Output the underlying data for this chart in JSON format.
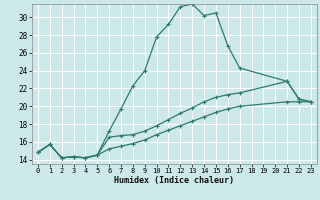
{
  "xlabel": "Humidex (Indice chaleur)",
  "bg_color": "#cce8e8",
  "grid_color": "#ffffff",
  "line_color": "#2e7b6e",
  "xlim": [
    -0.5,
    23.5
  ],
  "ylim": [
    13.5,
    31.5
  ],
  "xticks": [
    0,
    1,
    2,
    3,
    4,
    5,
    6,
    7,
    8,
    9,
    10,
    11,
    12,
    13,
    14,
    15,
    16,
    17,
    18,
    19,
    20,
    21,
    22,
    23
  ],
  "yticks": [
    14,
    16,
    18,
    20,
    22,
    24,
    26,
    28,
    30
  ],
  "series": [
    {
      "x": [
        0,
        1,
        2,
        3,
        4,
        5,
        6,
        7,
        8,
        9,
        10,
        11,
        12,
        13,
        14,
        15,
        16,
        17,
        21,
        22,
        23
      ],
      "y": [
        14.8,
        15.7,
        14.2,
        14.3,
        14.2,
        14.5,
        17.2,
        19.7,
        22.3,
        24.0,
        27.8,
        29.2,
        31.2,
        31.5,
        30.2,
        30.5,
        26.8,
        24.3,
        22.8,
        20.8,
        20.5
      ]
    },
    {
      "x": [
        0,
        1,
        2,
        3,
        4,
        5,
        6,
        7,
        8,
        9,
        10,
        11,
        12,
        13,
        14,
        15,
        16,
        17,
        21,
        22,
        23
      ],
      "y": [
        14.8,
        15.7,
        14.2,
        14.3,
        14.2,
        14.5,
        16.5,
        16.7,
        16.8,
        17.2,
        17.8,
        18.5,
        19.2,
        19.8,
        20.5,
        21.0,
        21.3,
        21.5,
        22.8,
        20.8,
        20.5
      ]
    },
    {
      "x": [
        0,
        1,
        2,
        3,
        4,
        5,
        6,
        7,
        8,
        9,
        10,
        11,
        12,
        13,
        14,
        15,
        16,
        17,
        21,
        22,
        23
      ],
      "y": [
        14.8,
        15.7,
        14.2,
        14.3,
        14.2,
        14.5,
        15.2,
        15.5,
        15.8,
        16.2,
        16.8,
        17.3,
        17.8,
        18.3,
        18.8,
        19.3,
        19.7,
        20.0,
        20.5,
        20.5,
        20.5
      ]
    }
  ]
}
